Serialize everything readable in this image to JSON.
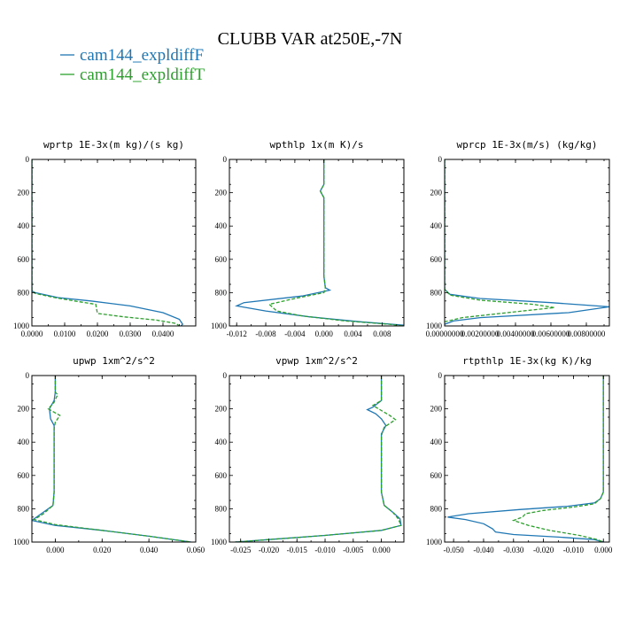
{
  "title": "CLUBB VAR at250E,-7N",
  "colors": {
    "blue": "#1f77b4",
    "green": "#2ca02c"
  },
  "legend": [
    {
      "label": "cam144_expldiffF",
      "color": "#1f77b4",
      "style": "solid"
    },
    {
      "label": "cam144_expldiffT",
      "color": "#2ca02c",
      "style": "dashed"
    }
  ],
  "chart_data": [
    {
      "type": "line",
      "title": "wprtp  1E-3x(m kg)/(s kg)",
      "xlim": [
        0,
        0.05
      ],
      "ylim": [
        1000,
        0
      ],
      "xticks": [
        0,
        0.01,
        0.02,
        0.03,
        0.04
      ],
      "xtick_labels": [
        "0.0000",
        "0.0100",
        "0.0200",
        "0.0300",
        "0.0400"
      ],
      "yticks": [
        0,
        200,
        400,
        600,
        800,
        1000
      ],
      "ytick_labels": [
        "0",
        "200",
        "400",
        "600",
        "800",
        "1000"
      ],
      "series": [
        {
          "name": "cam144_expldiffF",
          "points": [
            [
              0,
              0
            ],
            [
              0,
              300
            ],
            [
              0,
              600
            ],
            [
              0,
              790
            ],
            [
              0.001,
              800
            ],
            [
              0.008,
              830
            ],
            [
              0.018,
              850
            ],
            [
              0.03,
              880
            ],
            [
              0.04,
              920
            ],
            [
              0.045,
              960
            ],
            [
              0.046,
              990
            ],
            [
              0.0455,
              1000
            ]
          ]
        },
        {
          "name": "cam144_expldiffT",
          "points": [
            [
              0,
              0
            ],
            [
              0,
              300
            ],
            [
              0,
              600
            ],
            [
              0,
              790
            ],
            [
              0.001,
              805
            ],
            [
              0.007,
              830
            ],
            [
              0.013,
              850
            ],
            [
              0.0195,
              870
            ],
            [
              0.02,
              925
            ],
            [
              0.028,
              945
            ],
            [
              0.038,
              965
            ],
            [
              0.044,
              985
            ],
            [
              0.045,
              1000
            ]
          ]
        }
      ]
    },
    {
      "type": "line",
      "title": "wpthlp  1x(m K)/s",
      "xlim": [
        -0.013,
        0.011
      ],
      "ylim": [
        1000,
        0
      ],
      "xticks": [
        -0.012,
        -0.008,
        -0.004,
        0,
        0.004,
        0.008
      ],
      "xtick_labels": [
        "-0.012",
        "-0.008",
        "-0.004",
        "0.000",
        "0.004",
        "0.008"
      ],
      "yticks": [
        0,
        200,
        400,
        600,
        800,
        1000
      ],
      "ytick_labels": [
        "0",
        "200",
        "400",
        "600",
        "800",
        "1000"
      ],
      "series": [
        {
          "name": "cam144_expldiffF",
          "points": [
            [
              0,
              0
            ],
            [
              0,
              150
            ],
            [
              -0.0005,
              190
            ],
            [
              0,
              230
            ],
            [
              0,
              500
            ],
            [
              0,
              700
            ],
            [
              0.0002,
              770
            ],
            [
              0.0008,
              785
            ],
            [
              -0.003,
              820
            ],
            [
              -0.011,
              860
            ],
            [
              -0.012,
              880
            ],
            [
              -0.008,
              910
            ],
            [
              -0.002,
              945
            ],
            [
              0.005,
              975
            ],
            [
              0.011,
              995
            ]
          ]
        },
        {
          "name": "cam144_expldiffT",
          "points": [
            [
              0,
              0
            ],
            [
              0,
              150
            ],
            [
              -0.0005,
              190
            ],
            [
              0,
              230
            ],
            [
              0,
              500
            ],
            [
              0,
              700
            ],
            [
              0.0002,
              770
            ],
            [
              0,
              800
            ],
            [
              -0.004,
              835
            ],
            [
              -0.0075,
              870
            ],
            [
              -0.0065,
              910
            ],
            [
              -0.003,
              940
            ],
            [
              0.003,
              970
            ],
            [
              0.009,
              990
            ],
            [
              0.011,
              1000
            ]
          ]
        }
      ]
    },
    {
      "type": "line",
      "title": "wprcp  1E-3x(m/s) (kg/kg)",
      "xlim": [
        0,
        0.0093
      ],
      "ylim": [
        1000,
        0
      ],
      "xticks": [
        0,
        0.002,
        0.004,
        0.006,
        0.008
      ],
      "xtick_labels": [
        "0.00000000",
        "0.00200000",
        "0.00400000",
        "0.00600000",
        "0.00800000"
      ],
      "yticks": [
        0,
        200,
        400,
        600,
        800,
        1000
      ],
      "ytick_labels": [
        "0",
        "200",
        "400",
        "600",
        "800",
        "1000"
      ],
      "series": [
        {
          "name": "cam144_expldiffF",
          "points": [
            [
              0,
              0
            ],
            [
              0,
              500
            ],
            [
              0,
              780
            ],
            [
              0.0003,
              810
            ],
            [
              0.002,
              835
            ],
            [
              0.006,
              860
            ],
            [
              0.0093,
              885
            ],
            [
              0.007,
              920
            ],
            [
              0.002,
              950
            ],
            [
              0.0005,
              970
            ],
            [
              0,
              990
            ]
          ]
        },
        {
          "name": "cam144_expldiffT",
          "points": [
            [
              0,
              0
            ],
            [
              0,
              500
            ],
            [
              0,
              780
            ],
            [
              0.0003,
              815
            ],
            [
              0.002,
              845
            ],
            [
              0.005,
              870
            ],
            [
              0.0062,
              890
            ],
            [
              0.004,
              915
            ],
            [
              0.001,
              950
            ],
            [
              0,
              975
            ]
          ]
        }
      ]
    },
    {
      "type": "line",
      "title": "upwp  1xm^2/s^2",
      "xlim": [
        -0.01,
        0.06
      ],
      "ylim": [
        1000,
        0
      ],
      "xticks": [
        0,
        0.02,
        0.04,
        0.06
      ],
      "xtick_labels": [
        "0.000",
        "0.020",
        "0.040",
        "0.060"
      ],
      "yticks": [
        0,
        200,
        400,
        600,
        800,
        1000
      ],
      "ytick_labels": [
        "0",
        "200",
        "400",
        "600",
        "800",
        "1000"
      ],
      "series": [
        {
          "name": "cam144_expldiffF",
          "points": [
            [
              0,
              0
            ],
            [
              0,
              100
            ],
            [
              -0.0005,
              150
            ],
            [
              -0.0025,
              200
            ],
            [
              -0.002,
              260
            ],
            [
              -0.0005,
              300
            ],
            [
              -0.0005,
              500
            ],
            [
              -0.0005,
              700
            ],
            [
              -0.001,
              780
            ],
            [
              -0.006,
              830
            ],
            [
              -0.01,
              870
            ],
            [
              0,
              900
            ],
            [
              0.02,
              930
            ],
            [
              0.04,
              965
            ],
            [
              0.058,
              1000
            ]
          ]
        },
        {
          "name": "cam144_expldiffT",
          "points": [
            [
              0,
              0
            ],
            [
              0,
              100
            ],
            [
              0.001,
              115
            ],
            [
              -0.0005,
              160
            ],
            [
              -0.003,
              200
            ],
            [
              0.002,
              240
            ],
            [
              0,
              280
            ],
            [
              -0.0005,
              320
            ],
            [
              -0.0005,
              500
            ],
            [
              -0.0005,
              700
            ],
            [
              -0.001,
              780
            ],
            [
              -0.005,
              830
            ],
            [
              -0.009,
              865
            ],
            [
              0,
              895
            ],
            [
              0.02,
              930
            ],
            [
              0.04,
              965
            ],
            [
              0.058,
              1000
            ]
          ]
        }
      ]
    },
    {
      "type": "line",
      "title": "vpwp  1xm^2/s^2",
      "xlim": [
        -0.027,
        0.004
      ],
      "ylim": [
        1000,
        0
      ],
      "xticks": [
        -0.025,
        -0.02,
        -0.015,
        -0.01,
        -0.005,
        0
      ],
      "xtick_labels": [
        "-0.025",
        "-0.020",
        "-0.015",
        "-0.010",
        "-0.005",
        "0.000"
      ],
      "yticks": [
        0,
        200,
        400,
        600,
        800,
        1000
      ],
      "ytick_labels": [
        "0",
        "200",
        "400",
        "600",
        "800",
        "1000"
      ],
      "series": [
        {
          "name": "cam144_expldiffF",
          "points": [
            [
              0,
              0
            ],
            [
              0,
              150
            ],
            [
              -0.0015,
              190
            ],
            [
              -0.0025,
              205
            ],
            [
              -0.001,
              230
            ],
            [
              0,
              260
            ],
            [
              0.0008,
              300
            ],
            [
              0,
              350
            ],
            [
              0,
              500
            ],
            [
              0,
              700
            ],
            [
              0.0005,
              780
            ],
            [
              0.002,
              820
            ],
            [
              0.0033,
              860
            ],
            [
              0.0035,
              900
            ],
            [
              0,
              930
            ],
            [
              -0.01,
              960
            ],
            [
              -0.02,
              985
            ],
            [
              -0.026,
              1000
            ]
          ]
        },
        {
          "name": "cam144_expldiffT",
          "points": [
            [
              0,
              0
            ],
            [
              0,
              150
            ],
            [
              -0.0015,
              180
            ],
            [
              0,
              210
            ],
            [
              0.0015,
              240
            ],
            [
              0.0025,
              265
            ],
            [
              0.0005,
              310
            ],
            [
              0,
              360
            ],
            [
              0,
              500
            ],
            [
              0,
              700
            ],
            [
              0.0005,
              780
            ],
            [
              0.002,
              820
            ],
            [
              0.003,
              860
            ],
            [
              0.0035,
              900
            ],
            [
              0,
              930
            ],
            [
              -0.01,
              960
            ],
            [
              -0.02,
              985
            ],
            [
              -0.026,
              1000
            ]
          ]
        }
      ]
    },
    {
      "type": "line",
      "title": "rtpthlp  1E-3x(kg K)/kg",
      "xlim": [
        -0.053,
        0.002
      ],
      "ylim": [
        1000,
        0
      ],
      "xticks": [
        -0.05,
        -0.04,
        -0.03,
        -0.02,
        -0.01,
        0
      ],
      "xtick_labels": [
        "-0.050",
        "-0.040",
        "-0.030",
        "-0.020",
        "-0.010",
        "0.000"
      ],
      "yticks": [
        0,
        200,
        400,
        600,
        800,
        1000
      ],
      "ytick_labels": [
        "0",
        "200",
        "400",
        "600",
        "800",
        "1000"
      ],
      "series": [
        {
          "name": "cam144_expldiffF",
          "points": [
            [
              0,
              0
            ],
            [
              0,
              400
            ],
            [
              0,
              700
            ],
            [
              -0.001,
              740
            ],
            [
              -0.003,
              765
            ],
            [
              -0.012,
              785
            ],
            [
              -0.028,
              805
            ],
            [
              -0.045,
              830
            ],
            [
              -0.052,
              850
            ],
            [
              -0.046,
              865
            ],
            [
              -0.04,
              890
            ],
            [
              -0.037,
              920
            ],
            [
              -0.036,
              940
            ],
            [
              -0.03,
              955
            ],
            [
              -0.015,
              970
            ],
            [
              -0.003,
              985
            ],
            [
              0,
              1000
            ]
          ]
        },
        {
          "name": "cam144_expldiffT",
          "points": [
            [
              0,
              0
            ],
            [
              0,
              400
            ],
            [
              0,
              700
            ],
            [
              -0.001,
              740
            ],
            [
              -0.003,
              770
            ],
            [
              -0.01,
              790
            ],
            [
              -0.02,
              810
            ],
            [
              -0.026,
              830
            ],
            [
              -0.027,
              850
            ],
            [
              -0.03,
              870
            ],
            [
              -0.025,
              900
            ],
            [
              -0.018,
              930
            ],
            [
              -0.008,
              960
            ],
            [
              -0.002,
              985
            ],
            [
              0,
              1000
            ]
          ]
        }
      ]
    }
  ]
}
